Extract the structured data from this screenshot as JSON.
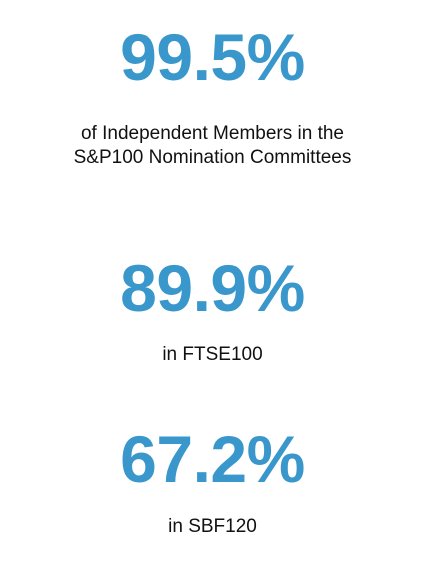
{
  "accent_color": "#3a97cc",
  "stats": [
    {
      "value": "99.5%",
      "caption_line1": "of Independent Members in the",
      "caption_line2": "S&P100 Nomination Committees"
    },
    {
      "value": "89.9%",
      "caption_line1": "in FTSE100"
    },
    {
      "value": "67.2%",
      "caption_line1": "in SBF120"
    }
  ]
}
